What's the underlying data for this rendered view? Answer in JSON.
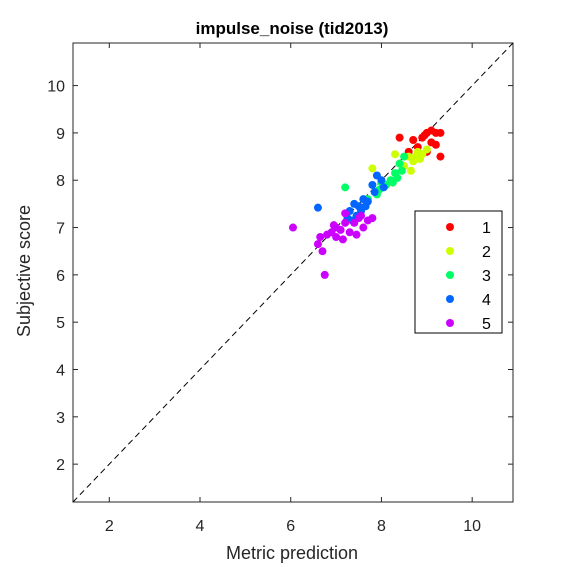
{
  "chart_data": {
    "type": "scatter",
    "title": "impulse_noise (tid2013)",
    "xlabel": "Metric prediction",
    "ylabel": "Subjective score",
    "xlim": [
      1.2,
      10.9
    ],
    "ylim": [
      1.2,
      10.9
    ],
    "xticks": [
      2,
      4,
      6,
      8,
      10
    ],
    "yticks": [
      2,
      3,
      4,
      5,
      6,
      7,
      8,
      9,
      10
    ],
    "reference_line": "y = x (dashed)",
    "grid": false,
    "legend_position": "right",
    "series": [
      {
        "name": "1",
        "color": "#ff0000",
        "points": [
          [
            8.4,
            8.9
          ],
          [
            8.7,
            8.85
          ],
          [
            8.9,
            8.9
          ],
          [
            9.0,
            9.0
          ],
          [
            9.1,
            9.05
          ],
          [
            9.2,
            9.0
          ],
          [
            9.3,
            9.0
          ],
          [
            8.8,
            8.7
          ],
          [
            9.0,
            8.6
          ],
          [
            9.2,
            8.75
          ],
          [
            9.3,
            8.5
          ],
          [
            8.6,
            8.6
          ],
          [
            9.1,
            8.8
          ],
          [
            8.95,
            8.95
          ]
        ]
      },
      {
        "name": "2",
        "color": "#ccff00",
        "points": [
          [
            8.3,
            8.55
          ],
          [
            8.6,
            8.5
          ],
          [
            8.8,
            8.6
          ],
          [
            8.9,
            8.55
          ],
          [
            9.0,
            8.65
          ],
          [
            8.7,
            8.4
          ],
          [
            8.5,
            8.3
          ],
          [
            8.85,
            8.45
          ],
          [
            7.8,
            8.25
          ],
          [
            8.4,
            8.35
          ],
          [
            8.65,
            8.2
          ],
          [
            8.75,
            8.5
          ]
        ]
      },
      {
        "name": "3",
        "color": "#00ff66",
        "points": [
          [
            7.2,
            7.85
          ],
          [
            8.0,
            7.95
          ],
          [
            8.2,
            8.0
          ],
          [
            8.3,
            8.15
          ],
          [
            8.4,
            8.35
          ],
          [
            8.5,
            8.5
          ],
          [
            8.1,
            7.9
          ],
          [
            7.9,
            7.7
          ],
          [
            7.7,
            7.6
          ],
          [
            8.35,
            8.05
          ],
          [
            8.45,
            8.2
          ],
          [
            7.95,
            7.8
          ],
          [
            8.25,
            7.95
          ]
        ]
      },
      {
        "name": "4",
        "color": "#0066ff",
        "points": [
          [
            6.6,
            7.42
          ],
          [
            7.3,
            7.35
          ],
          [
            7.4,
            7.5
          ],
          [
            7.5,
            7.45
          ],
          [
            7.6,
            7.6
          ],
          [
            7.7,
            7.55
          ],
          [
            7.8,
            7.9
          ],
          [
            7.9,
            8.1
          ],
          [
            8.0,
            8.0
          ],
          [
            7.55,
            7.35
          ],
          [
            7.45,
            7.25
          ],
          [
            7.35,
            7.15
          ],
          [
            7.65,
            7.45
          ],
          [
            7.85,
            7.75
          ],
          [
            7.25,
            7.2
          ],
          [
            8.05,
            7.85
          ]
        ]
      },
      {
        "name": "5",
        "color": "#cc00ff",
        "points": [
          [
            6.05,
            7.0
          ],
          [
            6.6,
            6.65
          ],
          [
            6.65,
            6.8
          ],
          [
            6.7,
            6.5
          ],
          [
            6.8,
            6.85
          ],
          [
            6.9,
            6.9
          ],
          [
            7.0,
            7.0
          ],
          [
            7.1,
            6.95
          ],
          [
            7.2,
            7.1
          ],
          [
            7.3,
            6.9
          ],
          [
            7.4,
            7.1
          ],
          [
            7.5,
            7.2
          ],
          [
            7.6,
            7.0
          ],
          [
            7.7,
            7.15
          ],
          [
            7.8,
            7.2
          ],
          [
            7.2,
            7.3
          ],
          [
            6.75,
            6.0
          ],
          [
            7.0,
            6.8
          ],
          [
            7.15,
            6.75
          ],
          [
            7.45,
            6.85
          ],
          [
            6.95,
            7.05
          ],
          [
            7.55,
            7.25
          ]
        ]
      }
    ]
  }
}
